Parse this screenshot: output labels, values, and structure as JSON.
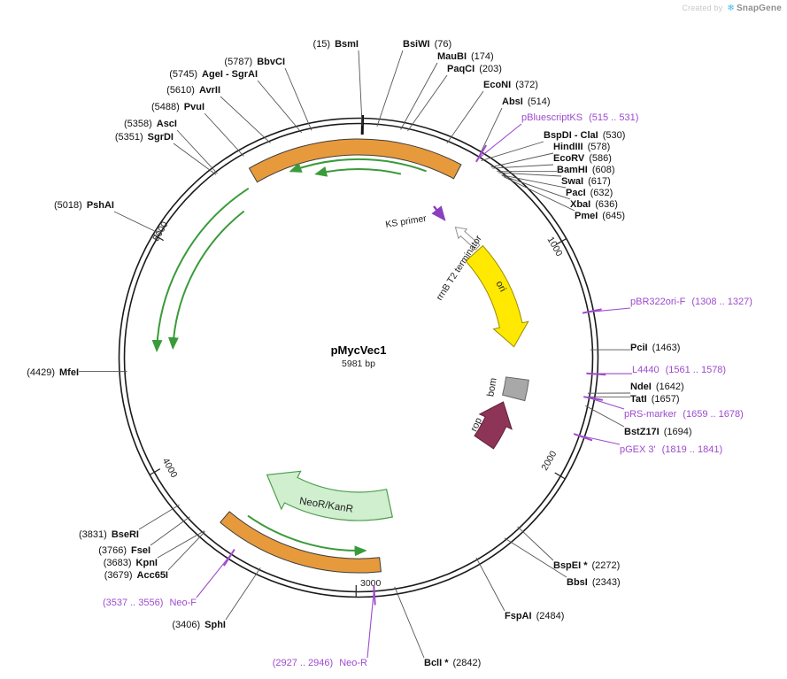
{
  "watermark": {
    "created_by": "Created by",
    "brand": "SnapGene"
  },
  "plasmid": {
    "name": "pMycVec1",
    "size_label": "5981 bp"
  },
  "ticks": [
    "1000",
    "2000",
    "3000",
    "4000",
    "5000"
  ],
  "features": {
    "ori": "ori",
    "bom": "bom",
    "rop": "rop",
    "neor_kanr": "NeoR/KanR",
    "terminator": "rrnB T2 terminator",
    "ks_primer": "KS primer"
  },
  "sites": [
    {
      "name": "BsmI",
      "pos": "(15)"
    },
    {
      "name": "BsiWI",
      "pos": "(76)"
    },
    {
      "name": "MauBI",
      "pos": "(174)"
    },
    {
      "name": "PaqCI",
      "pos": "(203)"
    },
    {
      "name": "EcoNI",
      "pos": "(372)"
    },
    {
      "name": "AbsI",
      "pos": "(514)"
    },
    {
      "name": "BspDI - ClaI",
      "pos": "(530)"
    },
    {
      "name": "HindIII",
      "pos": "(578)"
    },
    {
      "name": "EcoRV",
      "pos": "(586)"
    },
    {
      "name": "BamHI",
      "pos": "(608)"
    },
    {
      "name": "SwaI",
      "pos": "(617)"
    },
    {
      "name": "PacI",
      "pos": "(632)"
    },
    {
      "name": "XbaI",
      "pos": "(636)"
    },
    {
      "name": "PmeI",
      "pos": "(645)"
    },
    {
      "name": "PciI",
      "pos": "(1463)"
    },
    {
      "name": "NdeI",
      "pos": "(1642)"
    },
    {
      "name": "TatI",
      "pos": "(1657)"
    },
    {
      "name": "BstZ17I",
      "pos": "(1694)"
    },
    {
      "name": "BspEI *",
      "pos": "(2272)"
    },
    {
      "name": "BbsI",
      "pos": "(2343)"
    },
    {
      "name": "FspAI",
      "pos": "(2484)"
    },
    {
      "name": "BclI *",
      "pos": "(2842)"
    },
    {
      "name": "SphI",
      "pos": "(3406)"
    },
    {
      "name": "Acc65I",
      "pos": "(3679)"
    },
    {
      "name": "KpnI",
      "pos": "(3683)"
    },
    {
      "name": "FseI",
      "pos": "(3766)"
    },
    {
      "name": "BseRI",
      "pos": "(3831)"
    },
    {
      "name": "MfeI",
      "pos": "(4429)"
    },
    {
      "name": "PshAI",
      "pos": "(5018)"
    },
    {
      "name": "SgrDI",
      "pos": "(5351)"
    },
    {
      "name": "AscI",
      "pos": "(5358)"
    },
    {
      "name": "PvuI",
      "pos": "(5488)"
    },
    {
      "name": "AvrII",
      "pos": "(5610)"
    },
    {
      "name": "AgeI - SgrAI",
      "pos": "(5745)"
    },
    {
      "name": "BbvCI",
      "pos": "(5787)"
    }
  ],
  "primers": [
    {
      "name": "pBluescriptKS",
      "range": "(515 .. 531)"
    },
    {
      "name": "pBR322ori-F",
      "range": "(1308 .. 1327)"
    },
    {
      "name": "L4440",
      "range": "(1561 .. 1578)"
    },
    {
      "name": "pRS-marker",
      "range": "(1659 .. 1678)"
    },
    {
      "name": "pGEX 3'",
      "range": "(1819 .. 1841)"
    },
    {
      "name": "Neo-R",
      "range": "(2927 .. 2946)"
    },
    {
      "name": "Neo-F",
      "range": "(3537 .. 3556)"
    }
  ],
  "colors": {
    "primer_purple": "#9D4BCE",
    "ori_yellow": "#FFE900",
    "cds_green_fill": "#CFEFCF",
    "cds_green_stroke": "#4E9E4E",
    "orf_arrow_green": "#3A9B3A",
    "orange_feature": "#E79A3C",
    "rop_maroon": "#8E3557",
    "bom_gray": "#A8A8A8"
  }
}
